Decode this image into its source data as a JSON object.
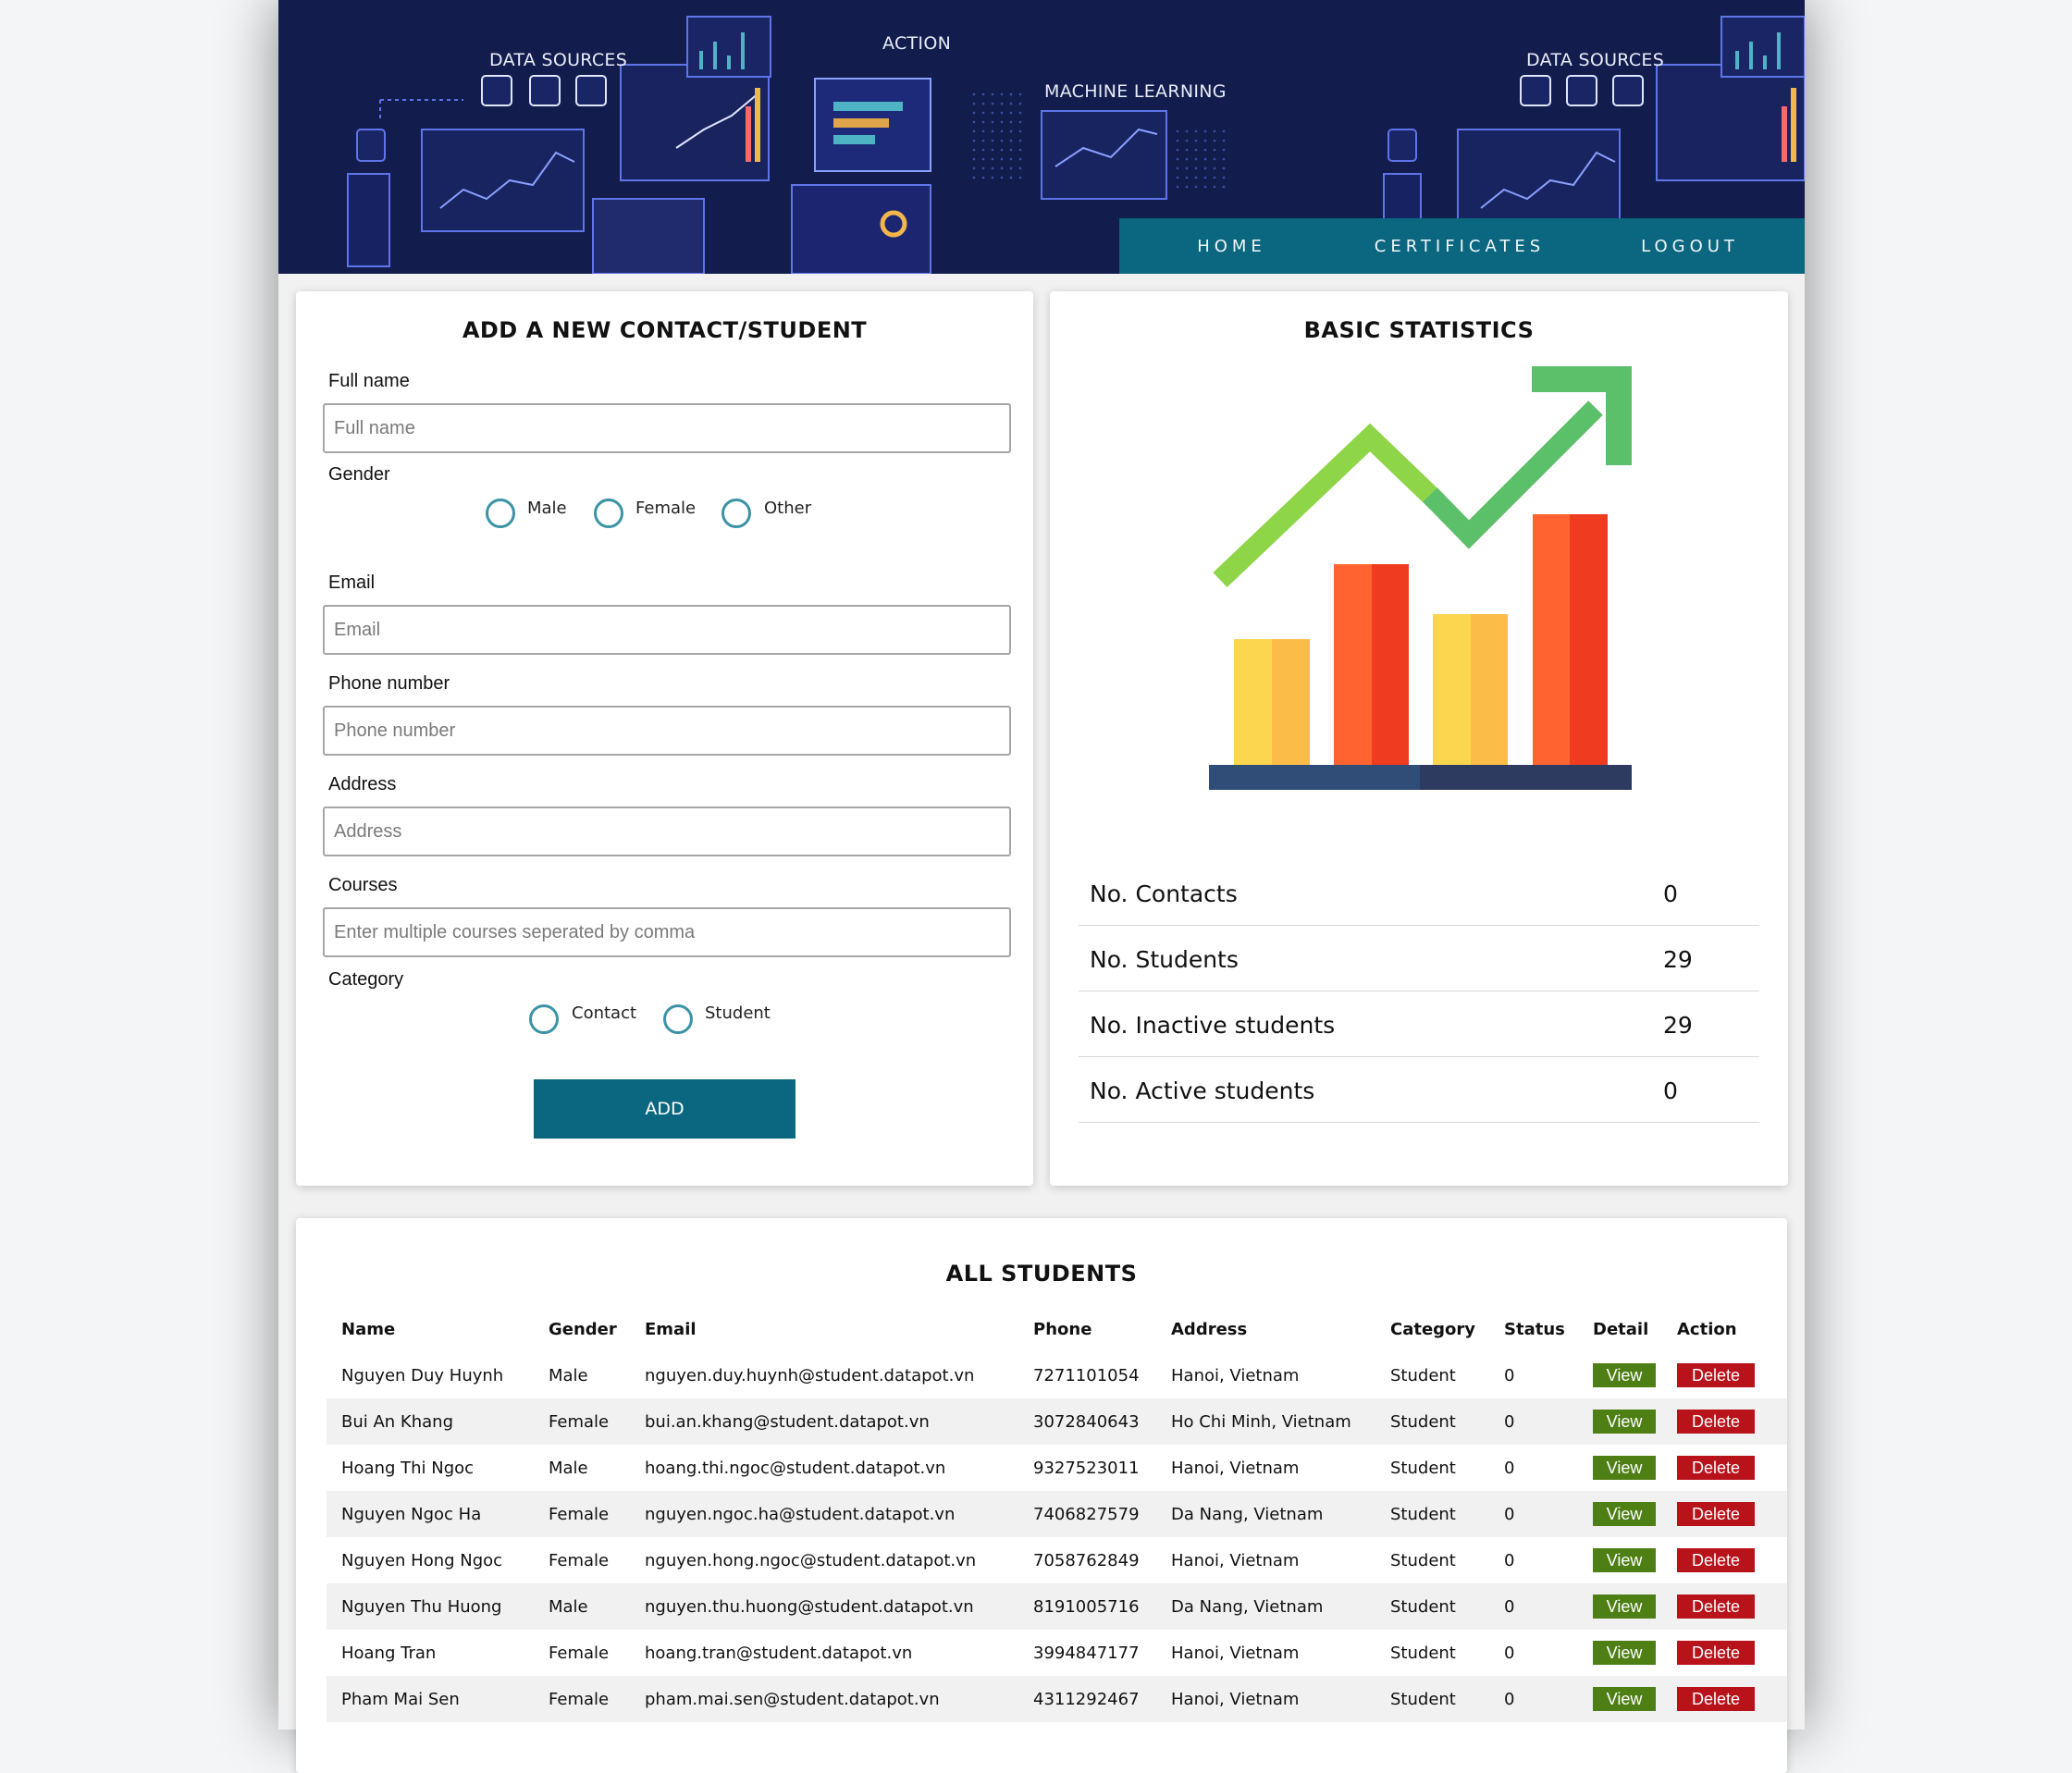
{
  "header": {
    "banner_labels": {
      "data_sources_1": "DATA SOURCES",
      "action": "ACTION",
      "machine_learning": "MACHINE LEARNING",
      "data_sources_2": "DATA SOURCES"
    },
    "nav": {
      "home": "HOME",
      "certificates": "CERTIFICATES",
      "logout": "LOGOUT"
    }
  },
  "add_form": {
    "title": "ADD A NEW CONTACT/STUDENT",
    "full_name": {
      "label": "Full name",
      "placeholder": "Full name"
    },
    "gender": {
      "label": "Gender",
      "options": [
        "Male",
        "Female",
        "Other"
      ]
    },
    "email": {
      "label": "Email",
      "placeholder": "Email"
    },
    "phone": {
      "label": "Phone number",
      "placeholder": "Phone number"
    },
    "address": {
      "label": "Address",
      "placeholder": "Address"
    },
    "courses": {
      "label": "Courses",
      "placeholder": "Enter multiple courses seperated by comma"
    },
    "category": {
      "label": "Category",
      "options": [
        "Contact",
        "Student"
      ]
    },
    "add_label": "ADD"
  },
  "statistics": {
    "title": "BASIC STATISTICS",
    "illustration": "bar-chart-trend-up-icon",
    "rows": [
      {
        "label": "No. Contacts",
        "value": "0"
      },
      {
        "label": "No. Students",
        "value": "29"
      },
      {
        "label": "No. Inactive students",
        "value": "29"
      },
      {
        "label": "No. Active students",
        "value": "0"
      }
    ]
  },
  "students": {
    "title": "ALL STUDENTS",
    "columns": [
      "Name",
      "Gender",
      "Email",
      "Phone",
      "Address",
      "Category",
      "Status",
      "Detail",
      "Action"
    ],
    "view_label": "View",
    "delete_label": "Delete",
    "rows": [
      [
        "Nguyen Duy Huynh",
        "Male",
        "nguyen.duy.huynh@student.datapot.vn",
        "7271101054",
        "Hanoi, Vietnam",
        "Student",
        "0"
      ],
      [
        "Bui An Khang",
        "Female",
        "bui.an.khang@student.datapot.vn",
        "3072840643",
        "Ho Chi Minh, Vietnam",
        "Student",
        "0"
      ],
      [
        "Hoang Thi Ngoc",
        "Male",
        "hoang.thi.ngoc@student.datapot.vn",
        "9327523011",
        "Hanoi, Vietnam",
        "Student",
        "0"
      ],
      [
        "Nguyen Ngoc Ha",
        "Female",
        "nguyen.ngoc.ha@student.datapot.vn",
        "7406827579",
        "Da Nang, Vietnam",
        "Student",
        "0"
      ],
      [
        "Nguyen Hong Ngoc",
        "Female",
        "nguyen.hong.ngoc@student.datapot.vn",
        "7058762849",
        "Hanoi, Vietnam",
        "Student",
        "0"
      ],
      [
        "Nguyen Thu Huong",
        "Male",
        "nguyen.thu.huong@student.datapot.vn",
        "8191005716",
        "Da Nang, Vietnam",
        "Student",
        "0"
      ],
      [
        "Hoang Tran",
        "Female",
        "hoang.tran@student.datapot.vn",
        "3994847177",
        "Hanoi, Vietnam",
        "Student",
        "0"
      ],
      [
        "Pham Mai Sen",
        "Female",
        "pham.mai.sen@student.datapot.vn",
        "4311292467",
        "Hanoi, Vietnam",
        "Student",
        "0"
      ]
    ]
  },
  "colors": {
    "banner_bg": "#131d4d",
    "nav_bg": "#0b6680",
    "add_button": "#0b6680",
    "radio_border": "#3b93a5",
    "view_button": "#4e7f14",
    "delete_button": "#b8131b"
  }
}
